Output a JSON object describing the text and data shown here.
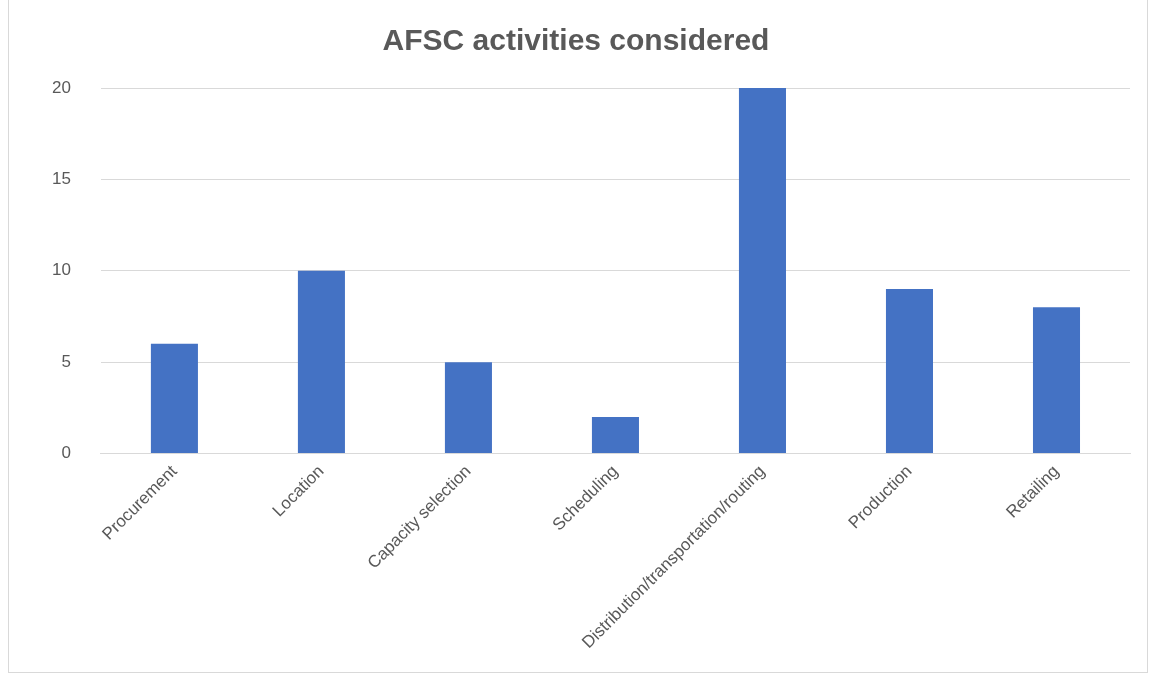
{
  "chart_data": {
    "type": "bar",
    "title": "AFSC activities considered",
    "categories": [
      "Procurement",
      "Location",
      "Capacity selection",
      "Scheduling",
      "Distribution/transportation/routing",
      "Production",
      "Retailing"
    ],
    "values": [
      6,
      10,
      5,
      2,
      20,
      9,
      8
    ],
    "color": "#4472c4",
    "ylim": [
      0,
      20
    ],
    "yticks": [
      0,
      5,
      10,
      15,
      20
    ],
    "grid": "y",
    "legend": false
  }
}
